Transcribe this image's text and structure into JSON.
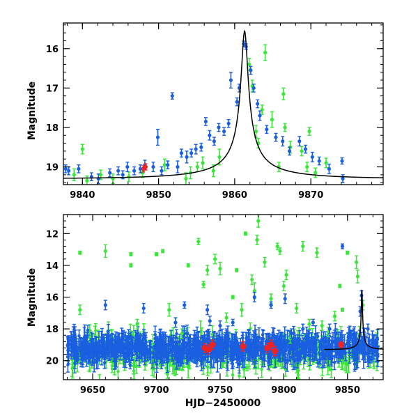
{
  "chart_data": [
    {
      "type": "scatter",
      "title": "",
      "xlabel": "",
      "ylabel": "Magnitude",
      "xlim": [
        9837.5,
        9879.5
      ],
      "ylim": [
        19.45,
        15.35
      ],
      "y_inverted": true,
      "x_ticks": [
        9840,
        9850,
        9860,
        9870
      ],
      "x_tick_labels": [
        "9840",
        "9850",
        "9860",
        "9870"
      ],
      "y_ticks": [
        16,
        17,
        18,
        19
      ],
      "y_tick_labels": [
        "16",
        "17",
        "18",
        "19"
      ],
      "series": [
        {
          "name": "blue",
          "color": "#1a5fe0",
          "points": [
            [
              9837.8,
              19.05,
              0.1
            ],
            [
              9838.2,
              19.1,
              0.1
            ],
            [
              9839.5,
              19.05,
              0.1
            ],
            [
              9841.2,
              19.25,
              0.1
            ],
            [
              9842.1,
              19.3,
              0.12
            ],
            [
              9843.6,
              19.15,
              0.1
            ],
            [
              9844.7,
              19.1,
              0.1
            ],
            [
              9845.3,
              19.2,
              0.1
            ],
            [
              9845.9,
              19.0,
              0.12
            ],
            [
              9846.8,
              19.1,
              0.1
            ],
            [
              9847.6,
              19.05,
              0.1
            ],
            [
              9848.2,
              18.95,
              0.12
            ],
            [
              9849.3,
              19.0,
              0.12
            ],
            [
              9849.9,
              18.25,
              0.2
            ],
            [
              9850.4,
              19.1,
              0.1
            ],
            [
              9851.2,
              18.95,
              0.1
            ],
            [
              9851.8,
              17.2,
              0.08
            ],
            [
              9852.5,
              19.0,
              0.15
            ],
            [
              9853.0,
              18.65,
              0.1
            ],
            [
              9853.7,
              18.75,
              0.15
            ],
            [
              9854.3,
              18.65,
              0.1
            ],
            [
              9854.9,
              18.55,
              0.12
            ],
            [
              9855.6,
              18.5,
              0.1
            ],
            [
              9856.2,
              17.85,
              0.1
            ],
            [
              9856.7,
              18.2,
              0.12
            ],
            [
              9857.3,
              18.35,
              0.1
            ],
            [
              9857.9,
              18.0,
              0.1
            ],
            [
              9858.6,
              18.1,
              0.1
            ],
            [
              9859.2,
              17.9,
              0.1
            ],
            [
              9859.5,
              16.8,
              0.2
            ],
            [
              9860.3,
              17.35,
              0.1
            ],
            [
              9860.6,
              17.0,
              0.1
            ],
            [
              9861.2,
              15.88,
              0.07
            ],
            [
              9861.5,
              15.95,
              0.07
            ],
            [
              9862.1,
              16.55,
              0.1
            ],
            [
              9862.5,
              17.0,
              0.1
            ],
            [
              9863.0,
              17.4,
              0.1
            ],
            [
              9863.3,
              17.7,
              0.12
            ],
            [
              9864.2,
              18.05,
              0.1
            ],
            [
              9865.4,
              18.25,
              0.1
            ],
            [
              9866.3,
              18.35,
              0.12
            ],
            [
              9867.2,
              18.6,
              0.1
            ],
            [
              9868.5,
              18.35,
              0.12
            ],
            [
              9869.3,
              18.55,
              0.1
            ],
            [
              9870.2,
              18.75,
              0.12
            ],
            [
              9871.1,
              18.85,
              0.1
            ],
            [
              9872.4,
              19.05,
              0.12
            ],
            [
              9874.1,
              18.85,
              0.08
            ],
            [
              9874.2,
              19.3,
              0.1
            ]
          ]
        },
        {
          "name": "green",
          "color": "#39e639",
          "points": [
            [
              9838.9,
              19.2,
              0.15
            ],
            [
              9840.0,
              18.55,
              0.12
            ],
            [
              9840.6,
              19.35,
              0.12
            ],
            [
              9842.4,
              19.2,
              0.12
            ],
            [
              9844.0,
              19.3,
              0.12
            ],
            [
              9846.1,
              19.25,
              0.12
            ],
            [
              9847.9,
              19.15,
              0.12
            ],
            [
              9850.8,
              18.95,
              0.15
            ],
            [
              9853.6,
              19.3,
              0.15
            ],
            [
              9854.2,
              19.15,
              0.15
            ],
            [
              9855.1,
              19.0,
              0.12
            ],
            [
              9855.8,
              18.9,
              0.15
            ],
            [
              9857.2,
              19.1,
              0.15
            ],
            [
              9858.0,
              18.75,
              0.2
            ],
            [
              9861.9,
              16.4,
              0.15
            ],
            [
              9862.3,
              16.95,
              0.15
            ],
            [
              9862.8,
              18.1,
              0.15
            ],
            [
              9863.1,
              18.4,
              0.12
            ],
            [
              9863.6,
              17.55,
              0.12
            ],
            [
              9864.0,
              16.1,
              0.2
            ],
            [
              9864.9,
              17.8,
              0.2
            ],
            [
              9865.8,
              19.0,
              0.12
            ],
            [
              9866.4,
              17.15,
              0.15
            ],
            [
              9866.6,
              18.0,
              0.1
            ],
            [
              9867.3,
              18.5,
              0.15
            ],
            [
              9868.8,
              18.6,
              0.12
            ],
            [
              9869.5,
              19.0,
              0.12
            ],
            [
              9869.8,
              18.1,
              0.1
            ],
            [
              9870.6,
              19.15,
              0.12
            ],
            [
              9872.0,
              18.9,
              0.12
            ]
          ]
        },
        {
          "name": "red",
          "color": "#ee2222",
          "points": [
            [
              9848.0,
              19.05,
              0.08
            ],
            [
              9848.3,
              19.0,
              0.08
            ]
          ]
        }
      ],
      "model_curve": {
        "t0": 9861.3,
        "peak_mag": 15.55,
        "baseline_mag": 19.3
      }
    },
    {
      "type": "scatter",
      "title": "",
      "xlabel": "HJD−2450000",
      "ylabel": "Magnitude",
      "xlim": [
        9627,
        9878
      ],
      "ylim": [
        21.2,
        10.8
      ],
      "y_inverted": true,
      "x_ticks": [
        9650,
        9700,
        9750,
        9800,
        9850
      ],
      "x_tick_labels": [
        "9650",
        "9700",
        "9750",
        "9800",
        "9850"
      ],
      "y_ticks": [
        12,
        14,
        16,
        18,
        20
      ],
      "y_tick_labels": [
        "12",
        "14",
        "16",
        "18",
        "20"
      ],
      "series": [
        {
          "name": "blue",
          "color": "#1a5fe0",
          "points": [
            [
              9660,
              16.5,
              0.3
            ],
            [
              9680,
              18.5,
              0.3
            ],
            [
              9690,
              16.7,
              0.3
            ],
            [
              9700,
              18.8,
              0.3
            ],
            [
              9715,
              17.6,
              0.3
            ],
            [
              9722,
              16.5,
              0.2
            ],
            [
              9740,
              16.8,
              0.3
            ],
            [
              9742,
              17.5,
              0.3
            ],
            [
              9750,
              17.8,
              0.3
            ],
            [
              9755,
              18.3,
              0.3
            ],
            [
              9760,
              17.6,
              0.2
            ],
            [
              9777,
              16.0,
              0.3
            ],
            [
              9790,
              16.5,
              0.2
            ],
            [
              9801,
              16.1,
              0.3
            ],
            [
              9806,
              18.3,
              0.3
            ],
            [
              9815,
              18.0,
              0.3
            ],
            [
              9823,
              17.6,
              0.2
            ],
            [
              9836,
              18.0,
              0.3
            ],
            [
              9841,
              18.3,
              0.3
            ],
            [
              9846,
              12.8,
              0.15
            ],
            [
              9855,
              18.3,
              0.3
            ],
            [
              9860,
              16.9,
              0.3
            ],
            [
              9861,
              15.9,
              0.3
            ],
            [
              9866,
              18.0,
              0.3
            ],
            [
              9870,
              18.7,
              0.3
            ]
          ],
          "band": {
            "x_start": 9630,
            "x_end": 9874,
            "center_mag": 19.2,
            "spread": 0.65
          }
        },
        {
          "name": "green",
          "color": "#39e639",
          "points": [
            [
              9640,
              13.2,
              0.1
            ],
            [
              9660,
              13.1,
              0.4
            ],
            [
              9640,
              16.8,
              0.3
            ],
            [
              9680,
              13.3,
              0.1
            ],
            [
              9680,
              14.0,
              0.1
            ],
            [
              9685,
              17.7,
              0.3
            ],
            [
              9700,
              13.3,
              0.1
            ],
            [
              9705,
              13.1,
              0.1
            ],
            [
              9710,
              16.8,
              0.4
            ],
            [
              9715,
              17.6,
              0.3
            ],
            [
              9720,
              18.3,
              0.3
            ],
            [
              9725,
              14.0,
              0.1
            ],
            [
              9733,
              12.5,
              0.2
            ],
            [
              9737,
              15.2,
              0.2
            ],
            [
              9740,
              14.3,
              0.3
            ],
            [
              9746,
              13.6,
              0.3
            ],
            [
              9750,
              14.2,
              0.4
            ],
            [
              9755,
              17.3,
              0.3
            ],
            [
              9760,
              16.0,
              0.1
            ],
            [
              9763,
              14.3,
              0.1
            ],
            [
              9767,
              16.8,
              0.4
            ],
            [
              9770,
              12.0,
              0.1
            ],
            [
              9775,
              14.9,
              0.3
            ],
            [
              9777,
              15.6,
              0.5
            ],
            [
              9779,
              12.4,
              0.3
            ],
            [
              9780,
              11.2,
              0.4
            ],
            [
              9785,
              13.8,
              0.3
            ],
            [
              9790,
              16.1,
              0.3
            ],
            [
              9795,
              12.8,
              0.2
            ],
            [
              9797,
              13.1,
              0.2
            ],
            [
              9800,
              15.3,
              0.3
            ],
            [
              9802,
              14.6,
              0.3
            ],
            [
              9805,
              18.6,
              0.3
            ],
            [
              9810,
              16.7,
              0.3
            ],
            [
              9815,
              12.8,
              0.3
            ],
            [
              9820,
              17.7,
              0.3
            ],
            [
              9826,
              13.2,
              0.3
            ],
            [
              9830,
              17.8,
              0.3
            ],
            [
              9835,
              18.2,
              0.3
            ],
            [
              9840,
              17.2,
              0.3
            ],
            [
              9844,
              15.3,
              0.1
            ],
            [
              9846,
              16.8,
              0.1
            ],
            [
              9850,
              13.2,
              0.1
            ],
            [
              9857,
              13.8,
              0.4
            ],
            [
              9858,
              14.7,
              0.4
            ],
            [
              9862,
              16.5,
              0.3
            ]
          ],
          "band": {
            "x_start": 9630,
            "x_end": 9874,
            "center_mag": 19.5,
            "spread": 0.9
          }
        },
        {
          "name": "red",
          "color": "#ee2222",
          "points": [
            [
              9738,
              19.2,
              0.3
            ],
            [
              9741,
              19.3,
              0.3
            ],
            [
              9744,
              19.0,
              0.3
            ],
            [
              9768,
              19.1,
              0.3
            ],
            [
              9787,
              19.2,
              0.3
            ],
            [
              9790,
              19.0,
              0.3
            ],
            [
              9793,
              19.4,
              0.3
            ],
            [
              9845,
              19.0,
              0.2
            ]
          ]
        }
      ],
      "model_curve": {
        "t0": 9861.3,
        "peak_mag": 15.55,
        "baseline_mag": 19.3,
        "x_start": 9832
      }
    }
  ]
}
